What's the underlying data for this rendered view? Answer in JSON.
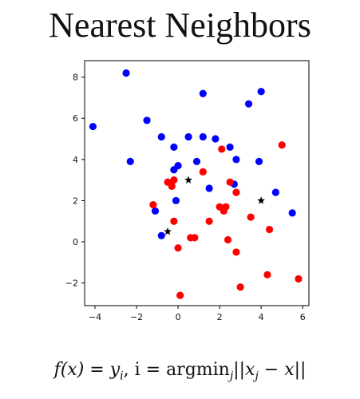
{
  "title": "Nearest Neighbors",
  "formula": {
    "lhs": "f(x) = y",
    "lhs_sub": "i",
    "mid": ", i = argmin",
    "argmin_sub": "j",
    "rhs_open": "||x",
    "rhs_sub": "j",
    "rhs_close": " − x||"
  },
  "chart_data": {
    "type": "scatter",
    "xlim": [
      -4.5,
      6.3
    ],
    "ylim": [
      -3.1,
      8.8
    ],
    "x_ticks": [
      -4,
      -2,
      0,
      2,
      4,
      6
    ],
    "y_ticks": [
      -2,
      0,
      2,
      4,
      6,
      8
    ],
    "grid": false,
    "colors": {
      "blue": "#0000ff",
      "red": "#ff0000",
      "query": "#000000"
    },
    "series": [
      {
        "marker": "circle",
        "color": "#0000ff",
        "points": [
          [
            -4.1,
            5.6
          ],
          [
            -2.5,
            8.2
          ],
          [
            -2.3,
            3.9
          ],
          [
            -1.5,
            5.9
          ],
          [
            -0.8,
            5.1
          ],
          [
            0.5,
            5.1
          ],
          [
            1.2,
            7.2
          ],
          [
            1.2,
            5.1
          ],
          [
            1.8,
            5.0
          ],
          [
            2.5,
            4.6
          ],
          [
            3.4,
            6.7
          ],
          [
            4.0,
            7.3
          ],
          [
            2.8,
            4.0
          ],
          [
            3.9,
            3.9
          ],
          [
            -0.2,
            4.6
          ],
          [
            0.9,
            3.9
          ],
          [
            0.0,
            3.7
          ],
          [
            -0.2,
            3.5
          ],
          [
            1.5,
            2.6
          ],
          [
            2.7,
            2.8
          ],
          [
            -0.1,
            2.0
          ],
          [
            -1.1,
            1.5
          ],
          [
            -0.8,
            0.3
          ],
          [
            4.7,
            2.4
          ],
          [
            5.5,
            1.4
          ]
        ]
      },
      {
        "marker": "circle",
        "color": "#ff0000",
        "points": [
          [
            2.1,
            4.5
          ],
          [
            5.0,
            4.7
          ],
          [
            1.2,
            3.4
          ],
          [
            2.5,
            2.9
          ],
          [
            -0.5,
            2.9
          ],
          [
            -0.2,
            3.0
          ],
          [
            -0.3,
            2.7
          ],
          [
            2.8,
            2.4
          ],
          [
            -1.2,
            1.8
          ],
          [
            2.0,
            1.7
          ],
          [
            2.3,
            1.7
          ],
          [
            2.2,
            1.5
          ],
          [
            3.5,
            1.2
          ],
          [
            -0.2,
            1.0
          ],
          [
            1.5,
            1.0
          ],
          [
            4.4,
            0.6
          ],
          [
            0.6,
            0.2
          ],
          [
            0.8,
            0.2
          ],
          [
            2.4,
            0.1
          ],
          [
            0.0,
            -0.3
          ],
          [
            2.8,
            -0.5
          ],
          [
            4.3,
            -1.6
          ],
          [
            5.8,
            -1.8
          ],
          [
            3.0,
            -2.2
          ],
          [
            0.1,
            -2.6
          ]
        ]
      },
      {
        "marker": "star",
        "color": "#000000",
        "points": [
          [
            0.5,
            3.0
          ],
          [
            4.0,
            2.0
          ],
          [
            -0.5,
            0.5
          ]
        ]
      }
    ]
  }
}
